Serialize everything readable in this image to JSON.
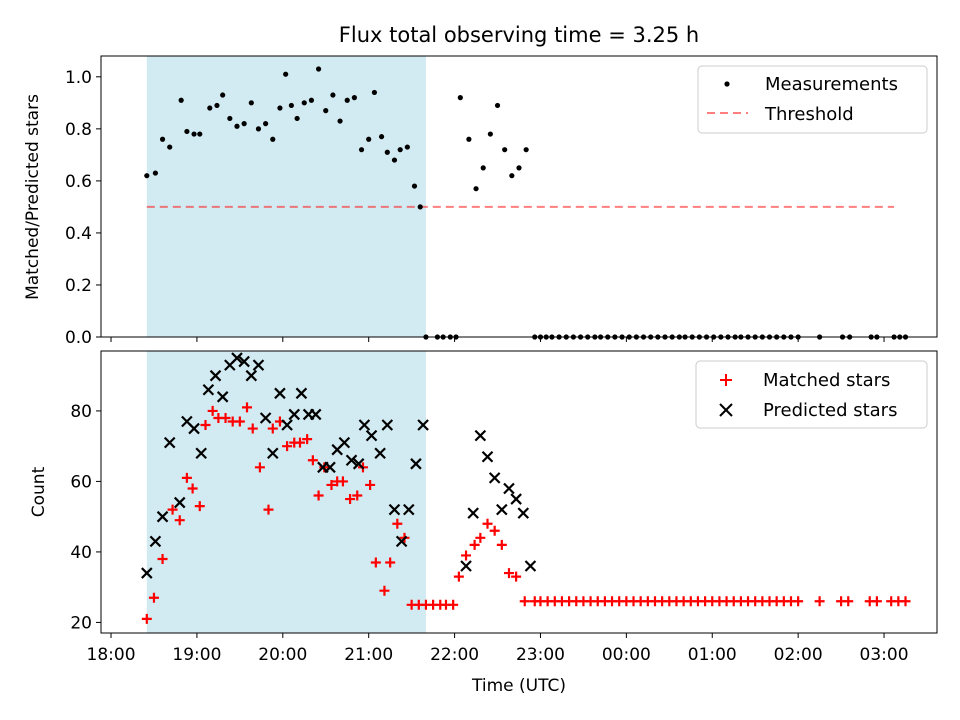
{
  "figure": {
    "title": "Flux total observing time = 3.25 h",
    "xlabel": "Time (UTC)"
  },
  "x_ticks": [
    {
      "t": 18.0,
      "label": "18:00"
    },
    {
      "t": 19.0,
      "label": "19:00"
    },
    {
      "t": 20.0,
      "label": "20:00"
    },
    {
      "t": 21.0,
      "label": "21:00"
    },
    {
      "t": 22.0,
      "label": "22:00"
    },
    {
      "t": 23.0,
      "label": "23:00"
    },
    {
      "t": 24.0,
      "label": "00:00"
    },
    {
      "t": 25.0,
      "label": "01:00"
    },
    {
      "t": 26.0,
      "label": "02:00"
    },
    {
      "t": 27.0,
      "label": "03:00"
    }
  ],
  "chart_data": [
    {
      "type": "scatter",
      "ylabel": "Matched/Predicted stars",
      "xlim": [
        "17:53",
        "03:37"
      ],
      "ylim": [
        0,
        1.08
      ],
      "y_ticks": [
        0.0,
        0.2,
        0.4,
        0.6,
        0.8,
        1.0
      ],
      "y_tick_labels": [
        "0.0",
        "0.2",
        "0.4",
        "0.6",
        "0.8",
        "1.0"
      ],
      "observing_window": {
        "start": "18:25",
        "end": "21:40",
        "color": "#add8e6"
      },
      "threshold": {
        "name": "Threshold",
        "y": 0.5,
        "from": "18:25",
        "to": "03:07",
        "color": "#ff0000"
      },
      "legend": {
        "placement": "upper right",
        "entries": [
          "Measurements",
          "Threshold"
        ]
      },
      "series": [
        {
          "name": "Measurements",
          "marker": "dot",
          "color": "#000000",
          "x": [
            "18:25",
            "18:31",
            "18:36",
            "18:41",
            "18:49",
            "18:53",
            "18:58",
            "19:02",
            "19:09",
            "19:14",
            "19:18",
            "19:23",
            "19:28",
            "19:33",
            "19:38",
            "19:43",
            "19:48",
            "19:53",
            "19:58",
            "20:02",
            "20:06",
            "20:10",
            "20:15",
            "20:20",
            "20:25",
            "20:30",
            "20:35",
            "20:40",
            "20:45",
            "20:50",
            "20:55",
            "21:00",
            "21:04",
            "21:09",
            "21:13",
            "21:18",
            "21:22",
            "21:27",
            "21:32",
            "21:36",
            "21:40",
            "21:48",
            "21:52",
            "21:57",
            "22:01",
            "22:04",
            "22:10",
            "22:15",
            "22:20",
            "22:25",
            "22:30",
            "22:35",
            "22:40",
            "22:45",
            "22:50",
            "22:56",
            "23:00",
            "23:04",
            "23:08",
            "23:13",
            "23:18",
            "23:23",
            "23:28",
            "23:33",
            "23:38",
            "23:42",
            "23:47",
            "23:52",
            "23:57",
            "00:02",
            "00:07",
            "00:12",
            "00:17",
            "00:22",
            "00:27",
            "00:32",
            "00:37",
            "00:41",
            "00:46",
            "00:51",
            "00:56",
            "01:01",
            "01:06",
            "01:11",
            "01:16",
            "01:20",
            "01:25",
            "01:30",
            "01:35",
            "01:40",
            "01:45",
            "01:50",
            "01:55",
            "02:00",
            "02:15",
            "02:31",
            "02:36",
            "02:51",
            "02:55",
            "03:07",
            "03:11",
            "03:15"
          ],
          "y": [
            0.62,
            0.63,
            0.76,
            0.73,
            0.91,
            0.79,
            0.78,
            0.78,
            0.88,
            0.89,
            0.93,
            0.84,
            0.81,
            0.82,
            0.9,
            0.8,
            0.82,
            0.76,
            0.88,
            1.01,
            0.89,
            0.84,
            0.9,
            0.91,
            1.03,
            0.87,
            0.93,
            0.83,
            0.91,
            0.92,
            0.72,
            0.76,
            0.94,
            0.77,
            0.71,
            0.68,
            0.72,
            0.73,
            0.58,
            0.5,
            0,
            0,
            0,
            0,
            0,
            0.92,
            0.76,
            0.57,
            0.65,
            0.78,
            0.89,
            0.72,
            0.62,
            0.65,
            0.72,
            0,
            0,
            0,
            0,
            0,
            0,
            0,
            0,
            0,
            0,
            0,
            0,
            0,
            0,
            0,
            0,
            0,
            0,
            0,
            0,
            0,
            0,
            0,
            0,
            0,
            0,
            0,
            0,
            0,
            0,
            0,
            0,
            0,
            0,
            0,
            0,
            0,
            0,
            0,
            0,
            0,
            0,
            0,
            0,
            0,
            0,
            0
          ]
        }
      ]
    },
    {
      "type": "scatter",
      "ylabel": "Count",
      "xlabel": "Time (UTC)",
      "xlim": [
        "17:53",
        "03:37"
      ],
      "ylim": [
        17,
        97
      ],
      "y_ticks": [
        20,
        40,
        60,
        80
      ],
      "y_tick_labels": [
        "20",
        "40",
        "60",
        "80"
      ],
      "observing_window": {
        "start": "18:25",
        "end": "21:40",
        "color": "#add8e6"
      },
      "legend": {
        "placement": "upper right",
        "entries": [
          "Matched stars",
          "Predicted stars"
        ]
      },
      "series": [
        {
          "name": "Matched stars",
          "marker": "plus",
          "color": "#ff0000",
          "x": [
            "18:25",
            "18:30",
            "18:36",
            "18:43",
            "18:48",
            "18:53",
            "18:57",
            "19:02",
            "19:06",
            "19:11",
            "19:15",
            "19:20",
            "19:25",
            "19:30",
            "19:35",
            "19:39",
            "19:44",
            "19:50",
            "19:53",
            "19:58",
            "20:03",
            "20:08",
            "20:12",
            "20:17",
            "20:21",
            "20:25",
            "20:29",
            "20:34",
            "20:38",
            "20:42",
            "20:47",
            "20:52",
            "20:56",
            "21:01",
            "21:05",
            "21:11",
            "21:15",
            "21:20",
            "21:25",
            "21:30",
            "21:35",
            "21:40",
            "21:45",
            "21:50",
            "21:54",
            "21:59",
            "22:03",
            "22:08",
            "22:14",
            "22:18",
            "22:23",
            "22:28",
            "22:33",
            "22:38",
            "22:43",
            "22:49",
            "22:56",
            "23:00",
            "23:05",
            "23:10",
            "23:15",
            "23:20",
            "23:25",
            "23:30",
            "23:35",
            "23:40",
            "23:45",
            "23:50",
            "23:55",
            "00:00",
            "00:05",
            "00:10",
            "00:15",
            "00:20",
            "00:25",
            "00:30",
            "00:35",
            "00:40",
            "00:45",
            "00:50",
            "00:55",
            "01:00",
            "01:05",
            "01:10",
            "01:15",
            "01:20",
            "01:25",
            "01:30",
            "01:35",
            "01:40",
            "01:45",
            "01:50",
            "01:55",
            "02:00",
            "02:15",
            "02:30",
            "02:35",
            "02:50",
            "02:55",
            "03:05",
            "03:10",
            "03:15"
          ],
          "y": [
            21,
            27,
            38,
            52,
            49,
            61,
            58,
            53,
            76,
            80,
            78,
            78,
            77,
            77,
            81,
            75,
            64,
            52,
            75,
            77,
            70,
            71,
            71,
            72,
            66,
            56,
            64,
            59,
            60,
            60,
            55,
            56,
            64,
            59,
            37,
            29,
            37,
            48,
            44,
            25,
            25,
            25,
            25,
            25,
            25,
            25,
            33,
            39,
            42,
            44,
            48,
            46,
            42,
            34,
            33,
            26,
            26,
            26,
            26,
            26,
            26,
            26,
            26,
            26,
            26,
            26,
            26,
            26,
            26,
            26,
            26,
            26,
            26,
            26,
            26,
            26,
            26,
            26,
            26,
            26,
            26,
            26,
            26,
            26,
            26,
            26,
            26,
            26,
            26,
            26,
            26,
            26,
            26,
            26,
            26,
            26,
            26,
            26,
            26,
            26,
            26,
            26
          ]
        },
        {
          "name": "Predicted stars",
          "marker": "x",
          "color": "#000000",
          "x": [
            "18:25",
            "18:31",
            "18:36",
            "18:41",
            "18:48",
            "18:53",
            "18:58",
            "19:03",
            "19:08",
            "19:13",
            "19:18",
            "19:23",
            "19:28",
            "19:33",
            "19:38",
            "19:43",
            "19:48",
            "19:53",
            "19:58",
            "20:03",
            "20:08",
            "20:13",
            "20:18",
            "20:23",
            "20:28",
            "20:33",
            "20:38",
            "20:43",
            "20:48",
            "20:53",
            "20:57",
            "21:02",
            "21:08",
            "21:13",
            "21:18",
            "21:23",
            "21:28",
            "21:33",
            "21:38",
            "22:08",
            "22:13",
            "22:18",
            "22:23",
            "22:28",
            "22:33",
            "22:38",
            "22:43",
            "22:48",
            "22:53"
          ],
          "y": [
            34,
            43,
            50,
            71,
            54,
            77,
            75,
            68,
            86,
            90,
            84,
            93,
            95,
            94,
            90,
            93,
            78,
            68,
            85,
            76,
            79,
            85,
            79,
            79,
            64,
            64,
            69,
            71,
            66,
            65,
            76,
            73,
            68,
            76,
            52,
            43,
            52,
            65,
            76,
            36,
            51,
            73,
            67,
            61,
            52,
            58,
            55,
            51,
            36
          ]
        }
      ]
    }
  ]
}
